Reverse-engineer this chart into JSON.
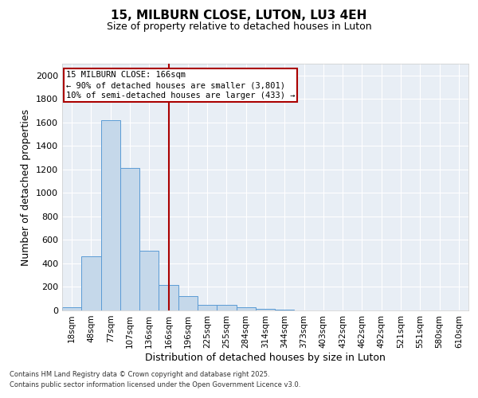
{
  "title": "15, MILBURN CLOSE, LUTON, LU3 4EH",
  "subtitle": "Size of property relative to detached houses in Luton",
  "xlabel": "Distribution of detached houses by size in Luton",
  "ylabel": "Number of detached properties",
  "categories": [
    "18sqm",
    "48sqm",
    "77sqm",
    "107sqm",
    "136sqm",
    "166sqm",
    "196sqm",
    "225sqm",
    "255sqm",
    "284sqm",
    "314sqm",
    "344sqm",
    "373sqm",
    "403sqm",
    "432sqm",
    "462sqm",
    "492sqm",
    "521sqm",
    "551sqm",
    "580sqm",
    "610sqm"
  ],
  "values": [
    30,
    460,
    1620,
    1210,
    510,
    220,
    120,
    50,
    45,
    30,
    15,
    5,
    0,
    0,
    0,
    0,
    0,
    0,
    0,
    0,
    0
  ],
  "bar_color": "#c5d8ea",
  "bar_edge_color": "#5b9bd5",
  "red_line_index": 5,
  "red_line_label": "15 MILBURN CLOSE: 166sqm",
  "annotation_line1": "← 90% of detached houses are smaller (3,801)",
  "annotation_line2": "10% of semi-detached houses are larger (433) →",
  "annotation_box_color": "#aa0000",
  "ylim": [
    0,
    2100
  ],
  "yticks": [
    0,
    200,
    400,
    600,
    800,
    1000,
    1200,
    1400,
    1600,
    1800,
    2000
  ],
  "background_color": "#e8eef5",
  "grid_color": "#ffffff",
  "footer_line1": "Contains HM Land Registry data © Crown copyright and database right 2025.",
  "footer_line2": "Contains public sector information licensed under the Open Government Licence v3.0."
}
